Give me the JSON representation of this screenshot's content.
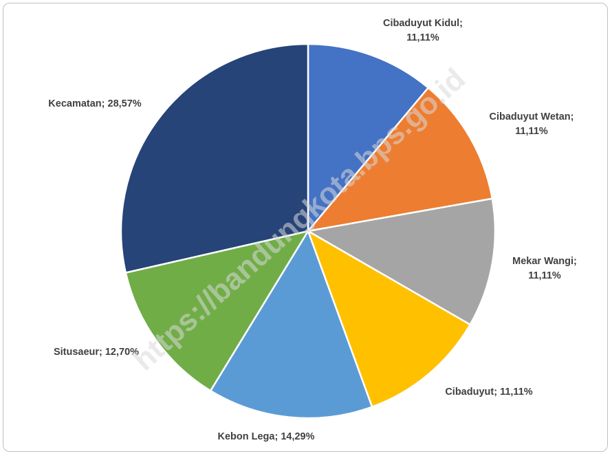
{
  "watermark": "https://bandungkota.bps.go.id",
  "chart_data": {
    "type": "pie",
    "slices": [
      {
        "name": "Cibaduyut Kidul",
        "value": 11.11,
        "label_line1": "Cibaduyut Kidul;",
        "label_line2": "11,11%",
        "color": "#4472C4"
      },
      {
        "name": "Cibaduyut Wetan",
        "value": 11.11,
        "label_line1": "Cibaduyut Wetan;",
        "label_line2": "11,11%",
        "color": "#ED7D31"
      },
      {
        "name": "Mekar Wangi",
        "value": 11.11,
        "label_line1": "Mekar Wangi;",
        "label_line2": "11,11%",
        "color": "#A5A5A5"
      },
      {
        "name": "Cibaduyut",
        "value": 11.11,
        "label_line1": "Cibaduyut; 11,11%",
        "label_line2": "",
        "color": "#FFC000"
      },
      {
        "name": "Kebon Lega",
        "value": 14.29,
        "label_line1": "Kebon Lega; 14,29%",
        "label_line2": "",
        "color": "#5B9BD5"
      },
      {
        "name": "Situsaeur",
        "value": 12.7,
        "label_line1": "Situsaeur; 12,70%",
        "label_line2": "",
        "color": "#70AD47"
      },
      {
        "name": "Kecamatan",
        "value": 28.57,
        "label_line1": "Kecamatan; 28,57%",
        "label_line2": "",
        "color": "#264478"
      }
    ]
  }
}
